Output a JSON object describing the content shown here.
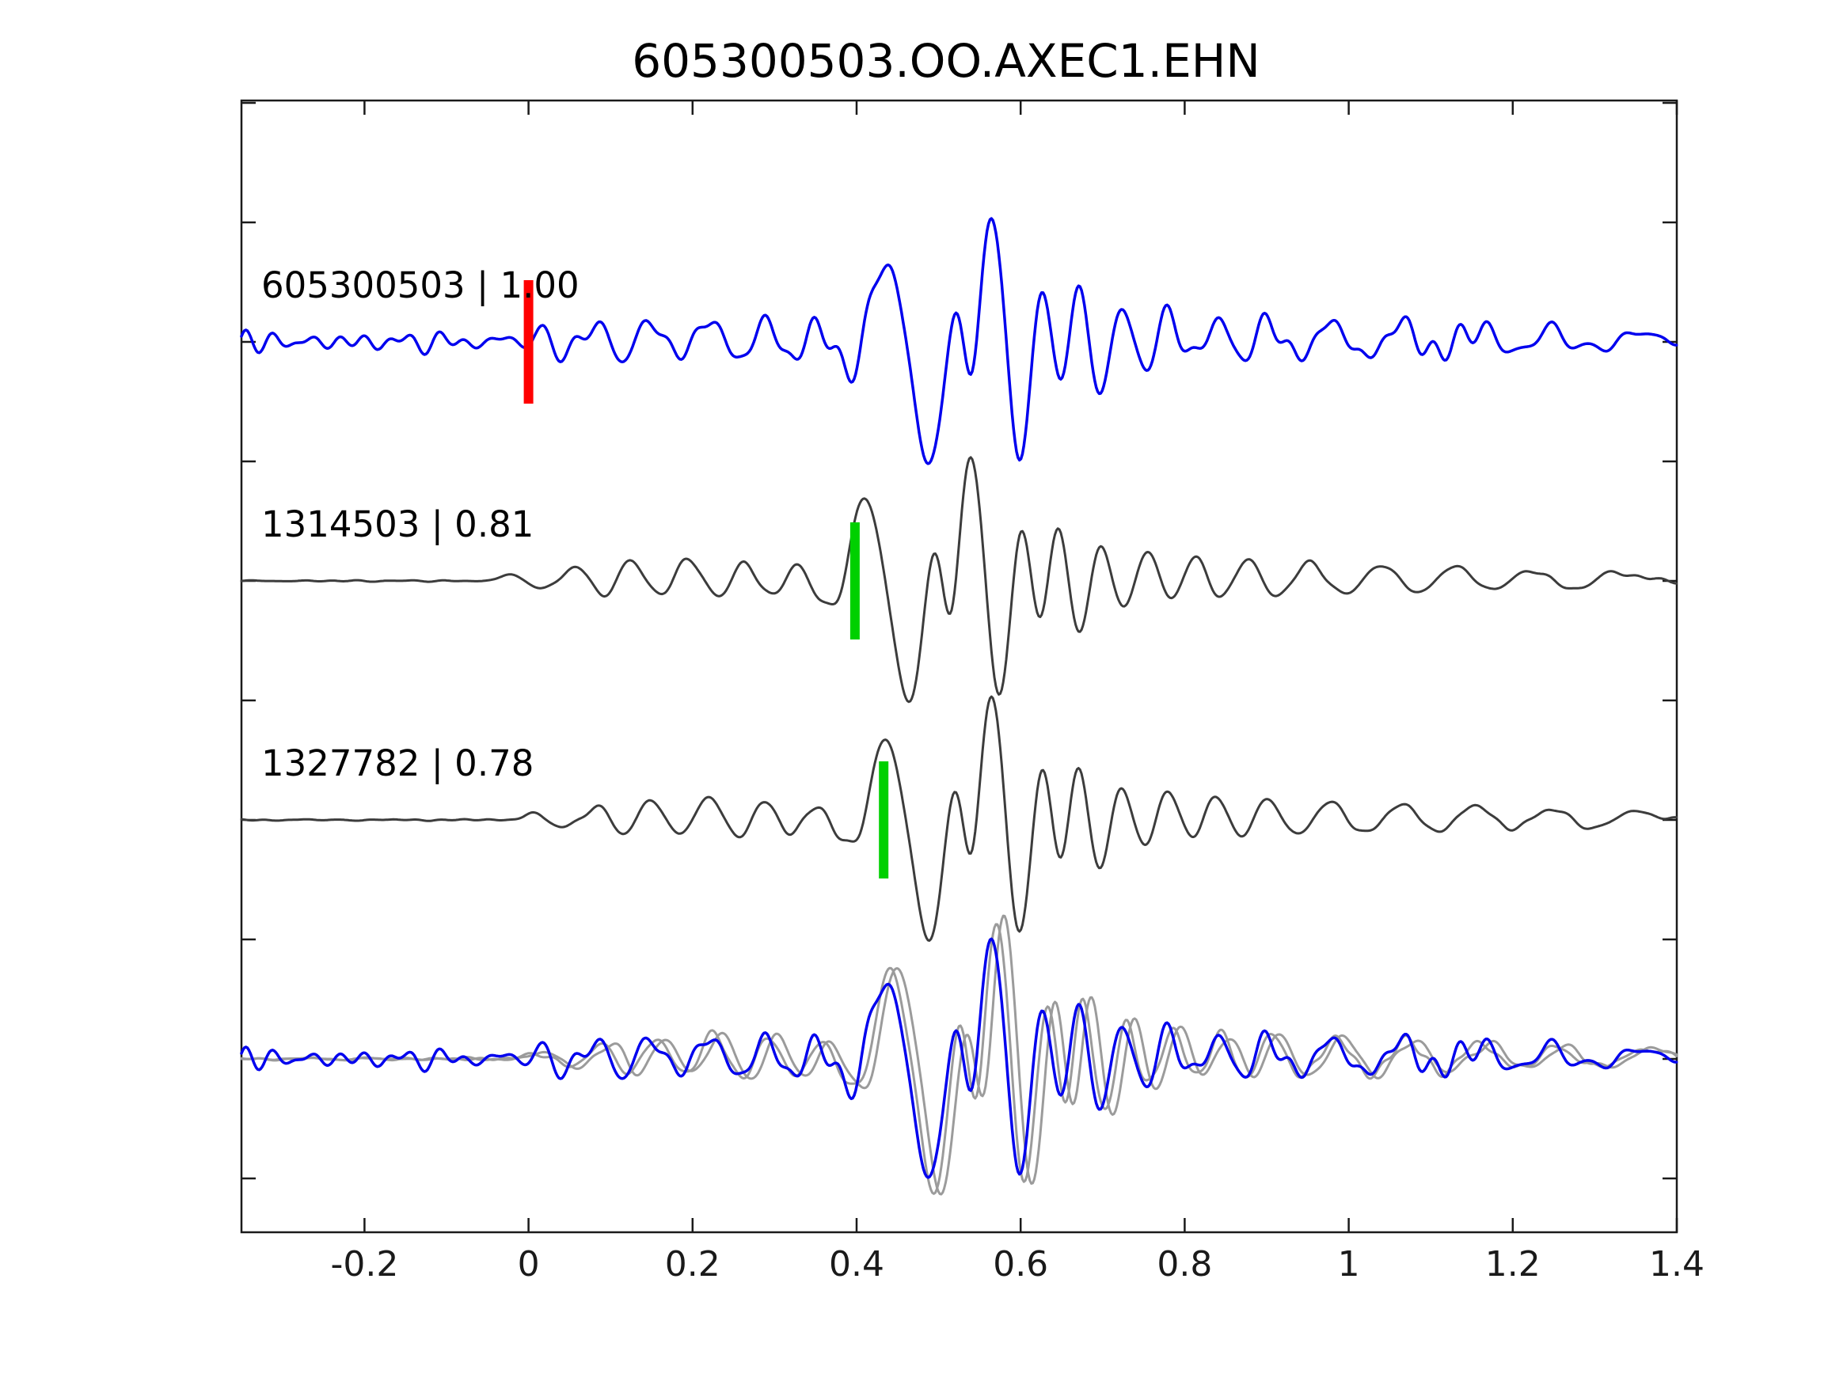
{
  "title": "605300503.OO.AXEC1.EHN",
  "colors": {
    "background": "#ffffff",
    "axis": "#1a1a1a",
    "text": "#000000",
    "template_blue": "#0000ee",
    "detection_gray": "#3c3c3c",
    "overlay_gray": "#9b9b9b",
    "pick_red": "#ff0000",
    "pick_green": "#00d000"
  },
  "chart_data": {
    "type": "line",
    "title": "605300503.OO.AXEC1.EHN",
    "xlabel": "",
    "ylabel": "",
    "xlim": [
      -0.35,
      1.4
    ],
    "xticks": [
      -0.2,
      0,
      0.2,
      0.4,
      0.6,
      0.8,
      1,
      1.2,
      1.4
    ],
    "xtick_labels": [
      "-0.2",
      "0",
      "0.2",
      "0.4",
      "0.6",
      "0.8",
      "1",
      "1.2",
      "1.4"
    ],
    "ytick_values": [
      2,
      1,
      0,
      -1,
      -2,
      -3,
      -4,
      -5,
      -6,
      -7
    ],
    "ytick_labels_shown": false,
    "grid": false,
    "legend": null,
    "trace_unit_spacing": 2,
    "traces": [
      {
        "id": "605300503",
        "label": "605300503 | 1.00",
        "correlation": "1.00",
        "color": "#0000ee",
        "offset_units": 0,
        "time_shift": 0,
        "amplitude": 1.15,
        "noise_amp": 0.11,
        "noise_seed": 9,
        "noise_gated": false,
        "pick": {
          "time": 0,
          "color": "#ff0000"
        }
      },
      {
        "id": "1314503",
        "label": "1314503 | 0.81",
        "correlation": "0.81",
        "color": "#3c3c3c",
        "offset_units": -2,
        "time_shift": -0.025,
        "amplitude": 1.13,
        "noise_amp": 0.025,
        "noise_seed": 5,
        "noise_gated": true,
        "pick": {
          "time": 0.398,
          "color": "#00d000"
        }
      },
      {
        "id": "1327782",
        "label": "1327782 | 0.78",
        "correlation": "0.78",
        "color": "#3c3c3c",
        "offset_units": -4,
        "time_shift": 0,
        "amplitude": 1.11,
        "noise_amp": 0.025,
        "noise_seed": 6,
        "noise_gated": true,
        "pick": {
          "time": 0.433,
          "color": "#00d000"
        }
      }
    ],
    "overlay": {
      "offset_units": -6,
      "members": [
        {
          "color": "#9b9b9b",
          "time_shift": 0.006,
          "amplitude": 1.22,
          "noise_amp": 0.05,
          "noise_seed": 21,
          "noise_gated": true
        },
        {
          "color": "#9b9b9b",
          "time_shift": 0.015,
          "amplitude": 1.27,
          "noise_amp": 0.05,
          "noise_seed": 22,
          "noise_gated": true
        },
        {
          "color": "#0000ee",
          "time_shift": 0,
          "amplitude": 1.12,
          "noise_amp": 0.11,
          "noise_seed": 9,
          "noise_gated": false
        }
      ]
    },
    "signal_lobes": [
      [
        0.005,
        0.012,
        0.05
      ],
      [
        0.04,
        0.012,
        -0.06
      ],
      [
        0.085,
        0.013,
        0.11
      ],
      [
        0.115,
        0.012,
        -0.12
      ],
      [
        0.15,
        0.013,
        0.15
      ],
      [
        0.185,
        0.013,
        -0.11
      ],
      [
        0.22,
        0.014,
        0.17
      ],
      [
        0.255,
        0.013,
        -0.13
      ],
      [
        0.288,
        0.012,
        0.15
      ],
      [
        0.32,
        0.013,
        -0.11
      ],
      [
        0.352,
        0.012,
        0.12
      ],
      [
        0.38,
        0.011,
        -0.13
      ],
      [
        0.403,
        0.011,
        -0.18
      ],
      [
        0.435,
        0.016,
        0.62
      ],
      [
        0.489,
        0.016,
        -0.92
      ],
      [
        0.518,
        0.011,
        0.4
      ],
      [
        0.541,
        0.01,
        -0.52
      ],
      [
        0.564,
        0.014,
        1.0
      ],
      [
        0.598,
        0.013,
        -0.9
      ],
      [
        0.625,
        0.01,
        0.48
      ],
      [
        0.649,
        0.009,
        -0.35
      ],
      [
        0.671,
        0.01,
        0.45
      ],
      [
        0.696,
        0.011,
        -0.4
      ],
      [
        0.723,
        0.011,
        0.28
      ],
      [
        0.751,
        0.012,
        -0.22
      ],
      [
        0.78,
        0.013,
        0.24
      ],
      [
        0.809,
        0.013,
        -0.17
      ],
      [
        0.838,
        0.014,
        0.2
      ],
      [
        0.868,
        0.014,
        -0.15
      ],
      [
        0.901,
        0.015,
        0.17
      ],
      [
        0.938,
        0.016,
        -0.13
      ],
      [
        0.977,
        0.017,
        0.15
      ],
      [
        1.02,
        0.018,
        -0.11
      ],
      [
        1.065,
        0.018,
        0.13
      ],
      [
        1.11,
        0.019,
        -0.1
      ],
      [
        1.155,
        0.02,
        0.12
      ],
      [
        1.2,
        0.02,
        -0.08
      ],
      [
        1.248,
        0.021,
        0.09
      ],
      [
        1.298,
        0.022,
        -0.07
      ],
      [
        1.35,
        0.022,
        0.07
      ]
    ]
  }
}
